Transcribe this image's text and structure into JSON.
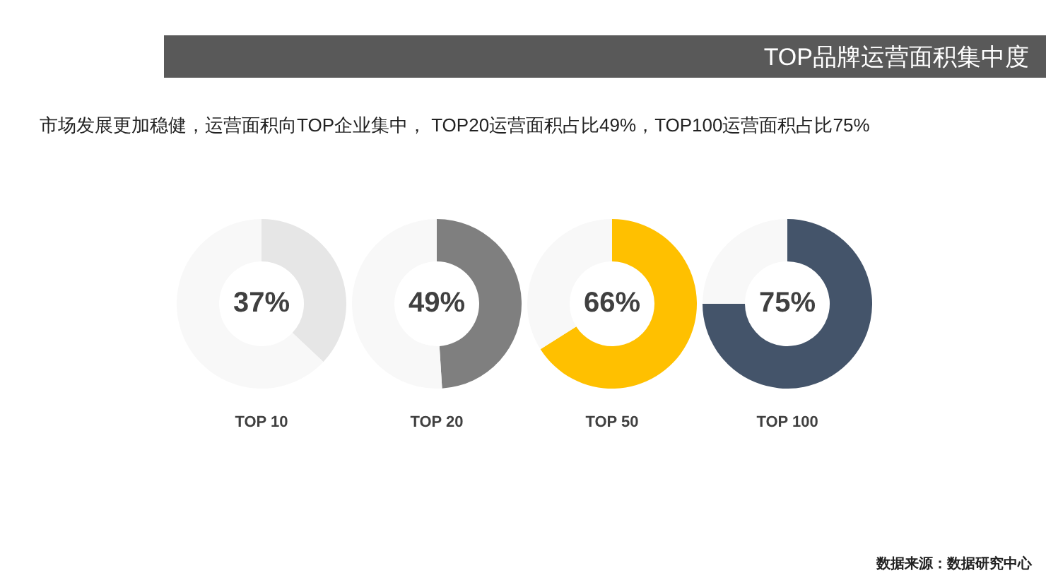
{
  "chart_data": [
    {
      "type": "other",
      "title": "TOP品牌运营面积集中度",
      "subtitle": "市场发展更加稳健，运营面积向TOP企业集中， TOP20运营面积占比49%，TOP100运营面积占比75%",
      "annotations": [
        "数据来源：数据研究中心"
      ]
    },
    {
      "type": "donut",
      "xlabel": "TOP 10",
      "categories": [
        null,
        null
      ],
      "values": [
        37,
        63
      ],
      "colors": [
        "#e6e6e6",
        "#f8f8f8"
      ],
      "value_labels": [
        "37%",
        null
      ]
    },
    {
      "type": "donut",
      "xlabel": "TOP 20",
      "categories": [
        null,
        null
      ],
      "values": [
        49,
        51
      ],
      "colors": [
        "#7f7f7f",
        "#f8f8f8"
      ],
      "value_labels": [
        "49%",
        null
      ]
    },
    {
      "type": "donut",
      "xlabel": "TOP 50",
      "categories": [
        null,
        null
      ],
      "values": [
        66,
        34
      ],
      "colors": [
        "#ffc000",
        "#f8f8f8"
      ],
      "value_labels": [
        "66%",
        null
      ]
    },
    {
      "type": "donut",
      "xlabel": "TOP 100",
      "categories": [
        null,
        null
      ],
      "values": [
        75,
        25
      ],
      "colors": [
        "#44546a",
        "#f8f8f8"
      ],
      "value_labels": [
        "75%",
        null
      ]
    }
  ]
}
